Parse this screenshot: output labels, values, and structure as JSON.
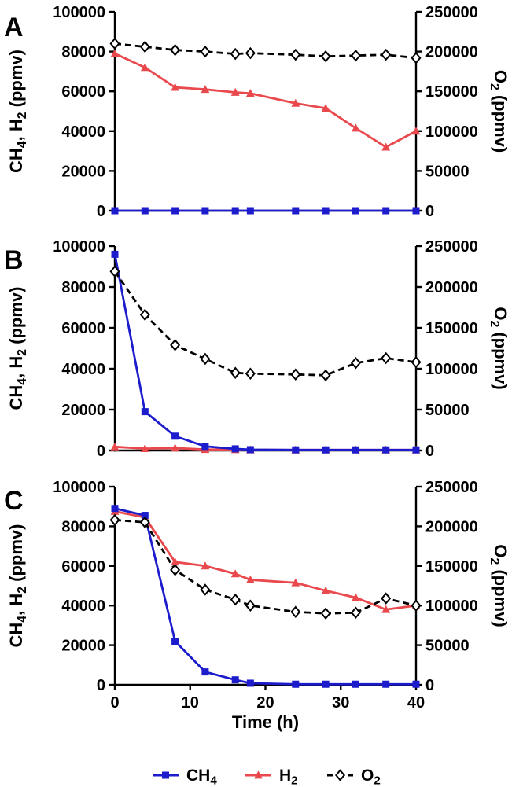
{
  "figure": {
    "panel_letters": [
      "A",
      "B",
      "C"
    ],
    "x_axis": {
      "label": "Time (h)",
      "ticks": [
        "0",
        "10",
        "20",
        "30",
        "40"
      ],
      "range": [
        0,
        40
      ]
    },
    "left_axis": {
      "label": "CH4, H2 (ppmv)",
      "ticks": [
        "0",
        "20000",
        "40000",
        "60000",
        "80000",
        "100000"
      ],
      "range": [
        0,
        100000
      ]
    },
    "right_axis": {
      "label": "O2 (ppmv)",
      "ticks": [
        "0",
        "50000",
        "100000",
        "150000",
        "200000",
        "250000"
      ],
      "range": [
        0,
        250000
      ]
    },
    "colors": {
      "ch4": "#1c1ccd",
      "h2": "#e9484c",
      "o2": "#000000"
    },
    "legend": [
      {
        "label": "CH4",
        "marker": "square",
        "color": "#1c1ccd",
        "dashed": false
      },
      {
        "label": "H2",
        "marker": "triangle",
        "color": "#e9484c",
        "dashed": false
      },
      {
        "label": "O2",
        "marker": "diamond",
        "color": "#000000",
        "dashed": true
      }
    ]
  },
  "chart_data": [
    {
      "type": "line",
      "panel": "A",
      "xlabel": "Time (h)",
      "ylabel_left": "CH4, H2 (ppmv)",
      "ylabel_right": "O2 (ppmv)",
      "xlim": [
        0,
        40
      ],
      "left_ylim": [
        0,
        100000
      ],
      "right_ylim": [
        0,
        250000
      ],
      "x": [
        0,
        4,
        8,
        12,
        16,
        18,
        24,
        28,
        32,
        36,
        40
      ],
      "series": [
        {
          "name": "H2",
          "axis": "left",
          "marker": "triangle",
          "color": "#e9484c",
          "dashed": false,
          "values": [
            79000,
            72000,
            62000,
            61000,
            59500,
            59000,
            54000,
            51500,
            41500,
            32000,
            40000
          ]
        },
        {
          "name": "CH4",
          "axis": "left",
          "marker": "square",
          "color": "#1c1ccd",
          "dashed": false,
          "values": [
            0,
            0,
            0,
            0,
            0,
            0,
            0,
            0,
            0,
            0,
            0
          ]
        },
        {
          "name": "O2",
          "axis": "right",
          "marker": "diamond",
          "color": "#000000",
          "dashed": true,
          "values": [
            210000,
            206000,
            202000,
            200000,
            197000,
            198000,
            196000,
            194000,
            195000,
            196000,
            192000
          ]
        }
      ]
    },
    {
      "type": "line",
      "panel": "B",
      "xlabel": "Time (h)",
      "ylabel_left": "CH4, H2 (ppmv)",
      "ylabel_right": "O2 (ppmv)",
      "xlim": [
        0,
        40
      ],
      "left_ylim": [
        0,
        100000
      ],
      "right_ylim": [
        0,
        250000
      ],
      "x": [
        0,
        4,
        8,
        12,
        16,
        18,
        24,
        28,
        32,
        36,
        40
      ],
      "series": [
        {
          "name": "H2",
          "axis": "left",
          "marker": "triangle",
          "color": "#e9484c",
          "dashed": false,
          "values": [
            1800,
            900,
            1200,
            500,
            400,
            300,
            300,
            300,
            300,
            300,
            300
          ]
        },
        {
          "name": "CH4",
          "axis": "left",
          "marker": "square",
          "color": "#1c1ccd",
          "dashed": false,
          "values": [
            96000,
            19000,
            7000,
            2000,
            800,
            400,
            300,
            300,
            300,
            300,
            300
          ]
        },
        {
          "name": "O2",
          "axis": "right",
          "marker": "diamond",
          "color": "#000000",
          "dashed": true,
          "values": [
            219000,
            166000,
            129000,
            112000,
            95000,
            94000,
            93000,
            92000,
            107000,
            113000,
            108000
          ]
        }
      ]
    },
    {
      "type": "line",
      "panel": "C",
      "xlabel": "Time (h)",
      "ylabel_left": "CH4, H2 (ppmv)",
      "ylabel_right": "O2 (ppmv)",
      "xlim": [
        0,
        40
      ],
      "left_ylim": [
        0,
        100000
      ],
      "right_ylim": [
        0,
        250000
      ],
      "x": [
        0,
        4,
        8,
        12,
        16,
        18,
        24,
        28,
        32,
        36,
        40
      ],
      "series": [
        {
          "name": "H2",
          "axis": "left",
          "marker": "triangle",
          "color": "#e9484c",
          "dashed": false,
          "values": [
            87500,
            84500,
            62000,
            60000,
            56000,
            53000,
            51500,
            47500,
            44000,
            38000,
            40000
          ]
        },
        {
          "name": "CH4",
          "axis": "left",
          "marker": "square",
          "color": "#1c1ccd",
          "dashed": false,
          "values": [
            89000,
            85500,
            22000,
            6500,
            2500,
            800,
            300,
            300,
            300,
            300,
            300
          ]
        },
        {
          "name": "O2",
          "axis": "right",
          "marker": "diamond",
          "color": "#000000",
          "dashed": true,
          "values": [
            208000,
            205000,
            145000,
            120000,
            107500,
            100000,
            92000,
            90000,
            91000,
            109000,
            100000
          ]
        }
      ]
    }
  ]
}
